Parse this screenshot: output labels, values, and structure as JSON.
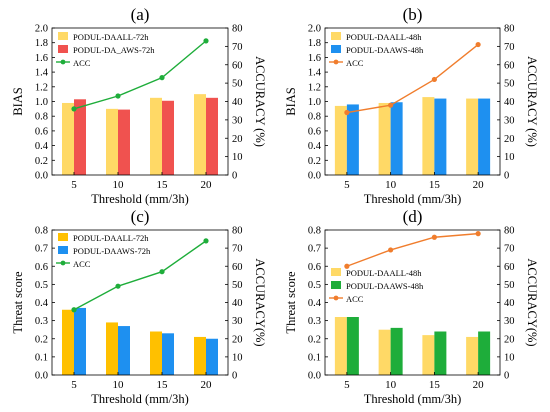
{
  "chart_data": [
    {
      "type": "bar",
      "panel_label": "(a)",
      "categories": [
        "5",
        "10",
        "15",
        "20"
      ],
      "series": [
        {
          "name": "PODUL-DAALL-72h",
          "values": [
            0.98,
            0.9,
            1.05,
            1.1
          ],
          "color": "#FFD966"
        },
        {
          "name": "PODUL-DA_AWS-72h",
          "values": [
            1.03,
            0.89,
            1.01,
            1.05
          ],
          "color": "#F0524F"
        }
      ],
      "line": {
        "name": "ACC",
        "values": [
          36,
          43,
          53,
          73
        ],
        "color": "#1EAD3A",
        "axis": "right"
      },
      "xlabel": "Threshold (mm/3h)",
      "ylabel": "BIAS",
      "y2label": "ACCURACY (%)",
      "ylim": [
        0,
        2.0
      ],
      "yticks": [
        "0.0",
        "0.2",
        "0.4",
        "0.6",
        "0.8",
        "1.0",
        "1.2",
        "1.4",
        "1.6",
        "1.8",
        "2.0"
      ],
      "y2lim": [
        0,
        80
      ],
      "y2ticks": [
        "0",
        "10",
        "20",
        "30",
        "40",
        "50",
        "60",
        "70",
        "80"
      ],
      "legend": "top-left",
      "grid": false
    },
    {
      "type": "bar",
      "panel_label": "(b)",
      "categories": [
        "5",
        "10",
        "15",
        "20"
      ],
      "series": [
        {
          "name": "PODUL-DAALL-48h",
          "values": [
            0.94,
            0.98,
            1.06,
            1.04
          ],
          "color": "#FFD966"
        },
        {
          "name": "PODUL-DAAWS-48h",
          "values": [
            0.96,
            0.99,
            1.04,
            1.04
          ],
          "color": "#1E90F0"
        }
      ],
      "line": {
        "name": "ACC",
        "values": [
          34,
          38,
          52,
          71
        ],
        "color": "#F07D2D",
        "axis": "right"
      },
      "xlabel": "Threshold (mm/3h)",
      "ylabel": "BIAS",
      "y2label": "ACCURACY (%)",
      "ylim": [
        0,
        2.0
      ],
      "yticks": [
        "0.0",
        "0.2",
        "0.4",
        "0.6",
        "0.8",
        "1.0",
        "1.2",
        "1.4",
        "1.6",
        "1.8",
        "2.0"
      ],
      "y2lim": [
        0,
        80
      ],
      "y2ticks": [
        "0",
        "10",
        "20",
        "30",
        "40",
        "50",
        "60",
        "70",
        "80"
      ],
      "legend": "top-left",
      "grid": false
    },
    {
      "type": "bar",
      "panel_label": "(c)",
      "categories": [
        "5",
        "10",
        "15",
        "20"
      ],
      "series": [
        {
          "name": "PODUL-DAALL-72h",
          "values": [
            0.36,
            0.29,
            0.24,
            0.21
          ],
          "color": "#FFC000"
        },
        {
          "name": "PODUL-DAAWS-72h",
          "values": [
            0.37,
            0.27,
            0.23,
            0.2
          ],
          "color": "#1E90F0"
        }
      ],
      "line": {
        "name": "ACC",
        "values": [
          36,
          49,
          57,
          74
        ],
        "color": "#1EAD3A",
        "axis": "right"
      },
      "xlabel": "Threshold (mm/3h)",
      "ylabel": "Threat score",
      "y2label": "ACCURACY(%)",
      "ylim": [
        0,
        0.8
      ],
      "yticks": [
        "0.0",
        "0.1",
        "0.2",
        "0.3",
        "0.4",
        "0.5",
        "0.6",
        "0.7",
        "0.8"
      ],
      "y2lim": [
        0,
        80
      ],
      "y2ticks": [
        "0",
        "10",
        "20",
        "30",
        "40",
        "50",
        "60",
        "70",
        "80"
      ],
      "legend": "top-left",
      "grid": false
    },
    {
      "type": "bar",
      "panel_label": "(d)",
      "categories": [
        "5",
        "10",
        "15",
        "20"
      ],
      "series": [
        {
          "name": "PODUL-DAALL-48h",
          "values": [
            0.32,
            0.25,
            0.22,
            0.21
          ],
          "color": "#FFD966"
        },
        {
          "name": "PODUL-DAAWS-48h",
          "values": [
            0.32,
            0.26,
            0.24,
            0.24
          ],
          "color": "#1EAD3A"
        }
      ],
      "line": {
        "name": "ACC",
        "values": [
          60,
          69,
          76,
          78
        ],
        "color": "#F07D2D",
        "axis": "right"
      },
      "xlabel": "Threshold (mm/3h)",
      "ylabel": "Threat score",
      "y2label": "ACCURACY(%)",
      "ylim": [
        0,
        0.8
      ],
      "yticks": [
        "0.0",
        "0.1",
        "0.2",
        "0.3",
        "0.4",
        "0.5",
        "0.6",
        "0.7",
        "0.8"
      ],
      "y2lim": [
        0,
        80
      ],
      "y2ticks": [
        "0",
        "10",
        "20",
        "30",
        "40",
        "50",
        "60",
        "70",
        "80"
      ],
      "legend": "center-left",
      "grid": false
    }
  ]
}
